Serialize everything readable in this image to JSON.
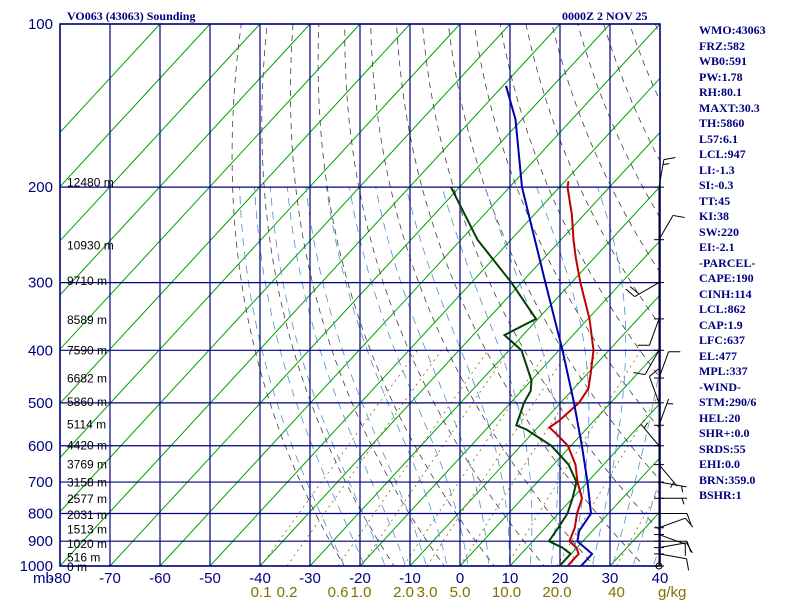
{
  "header": {
    "title": "VO063 (43063) Sounding",
    "valid_time": "0000Z  2 NOV 25"
  },
  "indices": [
    "WMO:43063",
    "FRZ:582",
    "WB0:591",
    "PW:1.78",
    "RH:80.1",
    "MAXT:30.3",
    "TH:5860",
    "L57:6.1",
    "LCL:947",
    "LI:-1.3",
    "SI:-0.3",
    "TT:45",
    "KI:38",
    "SW:220",
    "EI:-2.1",
    "-PARCEL-",
    "CAPE:190",
    "CINH:114",
    "LCL:862",
    "CAP:1.9",
    "LFC:637",
    "EL:477",
    "MPL:337",
    "-WIND-",
    "STM:290/6",
    "HEL:20",
    "SHR+:0.0",
    "SRDS:55",
    "EHI:0.0",
    "BRN:359.0",
    "BSHR:1"
  ],
  "chart_data": {
    "type": "line",
    "subtype": "skew-T log-P sounding",
    "pressure_axis": {
      "unit_label": "mb",
      "scale": "log",
      "range": [
        1000,
        100
      ],
      "ticks": [
        "100",
        "200",
        "300",
        "400",
        "500",
        "600",
        "700",
        "800",
        "900",
        "1000"
      ]
    },
    "temperature_axis": {
      "range": [
        -80,
        40
      ],
      "ticks": [
        "-80",
        "-70",
        "-60",
        "-50",
        "-40",
        "-30",
        "-20",
        "-10",
        "0",
        "10",
        "20",
        "30",
        "40"
      ]
    },
    "mixing_ratio_labels": {
      "ticks": [
        "0.1",
        "0.2",
        "0.6",
        "1.0",
        "2.0",
        "3.0",
        "5.0",
        "10.0",
        "20.0",
        "40"
      ],
      "unit": "g/kg",
      "placement_temperatures_C": [
        -39.8,
        -34.6,
        -24.4,
        -19.8,
        -11.3,
        -6.6,
        0.0,
        9.3,
        19.4,
        31.3
      ]
    },
    "height_labels": [
      {
        "pressure": 196,
        "text": "12480 m"
      },
      {
        "pressure": 256,
        "text": "10930 m"
      },
      {
        "pressure": 298,
        "text": "9710 m"
      },
      {
        "pressure": 352,
        "text": "8589 m"
      },
      {
        "pressure": 400,
        "text": "7590 m"
      },
      {
        "pressure": 451,
        "text": "6682 m"
      },
      {
        "pressure": 498,
        "text": "5860 m"
      },
      {
        "pressure": 548,
        "text": "5114 m"
      },
      {
        "pressure": 599,
        "text": "4420 m"
      },
      {
        "pressure": 650,
        "text": "3769 m"
      },
      {
        "pressure": 701,
        "text": "3158 m"
      },
      {
        "pressure": 752,
        "text": "2577 m"
      },
      {
        "pressure": 806,
        "text": "2031 m"
      },
      {
        "pressure": 857,
        "text": "1513 m"
      },
      {
        "pressure": 910,
        "text": "1020 m"
      },
      {
        "pressure": 964,
        "text": "516 m"
      },
      {
        "pressure": 1005,
        "text": "0 m"
      }
    ],
    "grid": true,
    "series": [
      {
        "role": "temperature",
        "color": "#c00000",
        "points": [
          [
            1000,
            21.5
          ],
          [
            950,
            21.5
          ],
          [
            925,
            19.9
          ],
          [
            900,
            17.3
          ],
          [
            850,
            15.9
          ],
          [
            800,
            13.7
          ],
          [
            750,
            11.9
          ],
          [
            700,
            8.0
          ],
          [
            650,
            4.4
          ],
          [
            600,
            -0.6
          ],
          [
            575,
            -4.4
          ],
          [
            555,
            -7.7
          ],
          [
            540,
            -7.0
          ],
          [
            500,
            -6.3
          ],
          [
            470,
            -7.1
          ],
          [
            440,
            -9.5
          ],
          [
            400,
            -13.1
          ],
          [
            350,
            -19.7
          ],
          [
            300,
            -28.2
          ],
          [
            270,
            -33.7
          ],
          [
            250,
            -37.5
          ],
          [
            225,
            -42.4
          ],
          [
            200,
            -48.4
          ],
          [
            195,
            -49.3
          ]
        ]
      },
      {
        "role": "dewpoint",
        "color": "#004000",
        "points": [
          [
            1000,
            19.9
          ],
          [
            950,
            19.9
          ],
          [
            925,
            17.1
          ],
          [
            900,
            13.2
          ],
          [
            850,
            12.6
          ],
          [
            800,
            11.8
          ],
          [
            750,
            10.0
          ],
          [
            700,
            7.8
          ],
          [
            650,
            3.0
          ],
          [
            600,
            -3.9
          ],
          [
            560,
            -11.9
          ],
          [
            550,
            -14.7
          ],
          [
            500,
            -17.3
          ],
          [
            475,
            -18.2
          ],
          [
            455,
            -19.9
          ],
          [
            400,
            -27.5
          ],
          [
            375,
            -33.7
          ],
          [
            350,
            -30.4
          ],
          [
            300,
            -42.0
          ],
          [
            250,
            -56.7
          ],
          [
            200,
            -71.7
          ]
        ]
      },
      {
        "role": "parcel",
        "color": "#0000b0",
        "points": [
          [
            1000,
            24.2
          ],
          [
            950,
            24.2
          ],
          [
            900,
            18.9
          ],
          [
            862,
            17.4
          ],
          [
            800,
            16.5
          ],
          [
            700,
            10.0
          ],
          [
            600,
            2.2
          ],
          [
            500,
            -7.3
          ],
          [
            400,
            -19.3
          ],
          [
            300,
            -35.2
          ],
          [
            200,
            -57.5
          ],
          [
            150,
            -71.3
          ],
          [
            130,
            -79.4
          ]
        ]
      }
    ],
    "wind_barbs": [
      {
        "pressure": 1000,
        "dir": 0,
        "speed": 0
      },
      {
        "pressure": 950,
        "dir": 100,
        "speed": 10
      },
      {
        "pressure": 925,
        "dir": 80,
        "speed": 10
      },
      {
        "pressure": 900,
        "dir": 90,
        "speed": 10
      },
      {
        "pressure": 875,
        "dir": 110,
        "speed": 10
      },
      {
        "pressure": 850,
        "dir": 70,
        "speed": 10
      },
      {
        "pressure": 800,
        "dir": 90,
        "speed": 10
      },
      {
        "pressure": 750,
        "dir": 90,
        "speed": 5
      },
      {
        "pressure": 700,
        "dir": 100,
        "speed": 5
      },
      {
        "pressure": 650,
        "dir": 140,
        "speed": 5
      },
      {
        "pressure": 600,
        "dir": 320,
        "speed": 5
      },
      {
        "pressure": 550,
        "dir": 20,
        "speed": 5
      },
      {
        "pressure": 500,
        "dir": 340,
        "speed": 10
      },
      {
        "pressure": 450,
        "dir": 20,
        "speed": 10
      },
      {
        "pressure": 400,
        "dir": 210,
        "speed": 10
      },
      {
        "pressure": 350,
        "dir": 200,
        "speed": 10
      },
      {
        "pressure": 300,
        "dir": 240,
        "speed": 20
      },
      {
        "pressure": 250,
        "dir": 30,
        "speed": 10
      },
      {
        "pressure": 200,
        "dir": 10,
        "speed": 15
      }
    ]
  },
  "colors": {
    "frame": "#000080",
    "isotherm": "#00a000",
    "dry_adiabat": "#404040",
    "moist_adiabat": "#4a90d0",
    "mixing_ratio_label": "#807000",
    "barb": "#000000"
  }
}
